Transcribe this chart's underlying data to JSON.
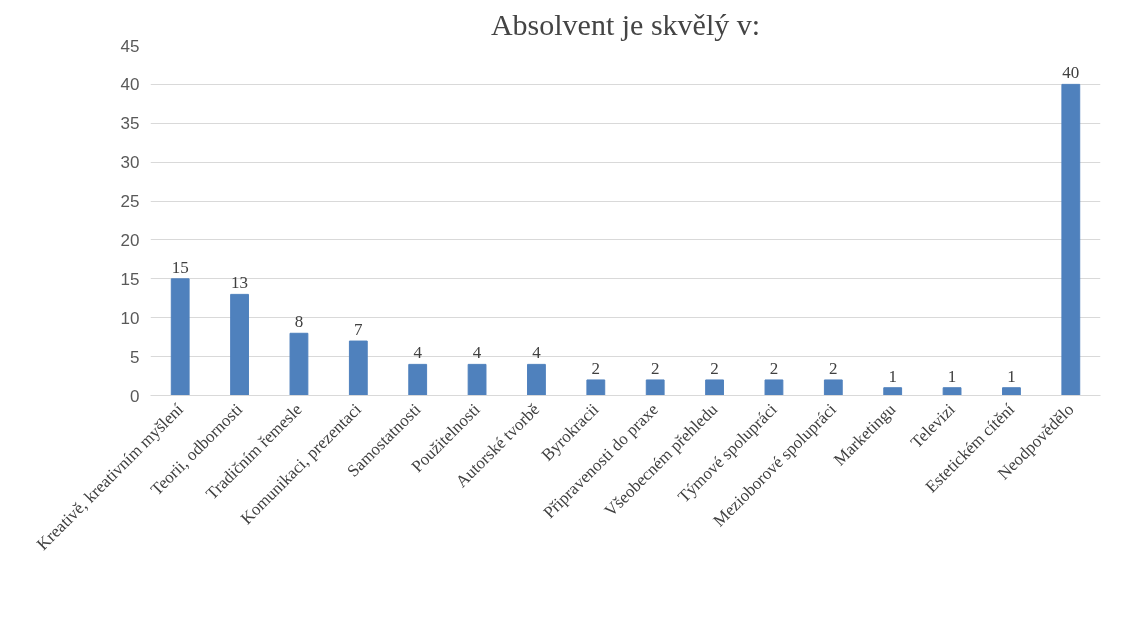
{
  "chart_data": {
    "type": "bar",
    "title": "Absolvent je skvělý v:",
    "categories": [
      "Kreativě, kreativním myšlení",
      "Teorii, odbornosti",
      "Tradičním řemesle",
      "Komunikaci, prezentaci",
      "Samostatnosti",
      "Použitelnosti",
      "Autorské tvorbě",
      "Byrokracii",
      "Připravenosti do praxe",
      "Všeobecném přehledu",
      "Týmové spolupráci",
      "Mezioborové spolupráci",
      "Marketingu",
      "Televizi",
      "Estetickém cítění",
      "Neodpovědělo"
    ],
    "values": [
      15,
      13,
      8,
      7,
      4,
      4,
      4,
      2,
      2,
      2,
      2,
      2,
      1,
      1,
      1,
      40
    ],
    "color": "#4f81bd",
    "ylim": [
      0,
      45
    ],
    "yticks": [
      0,
      5,
      10,
      15,
      20,
      25,
      30,
      35,
      40,
      45
    ],
    "grid": "y",
    "data_labels": true
  }
}
